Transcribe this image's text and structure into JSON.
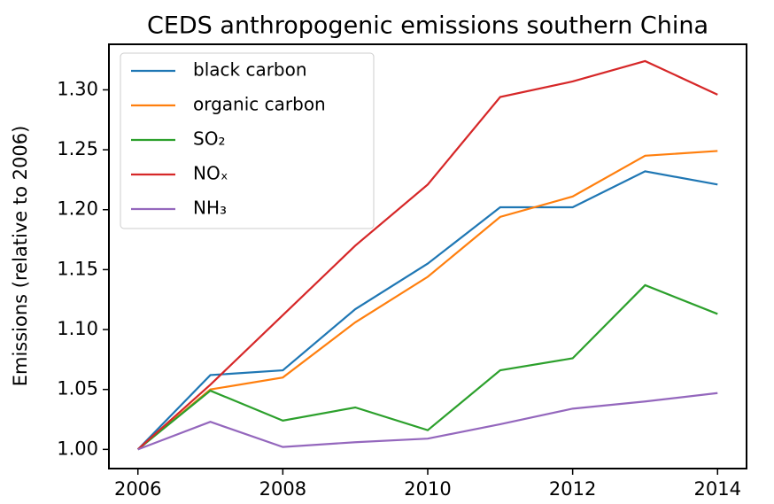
{
  "chart_data": {
    "type": "line",
    "title": "CEDS anthropogenic emissions southern China",
    "y_label": "Emissions (relative to 2006)",
    "x": [
      2006,
      2007,
      2008,
      2009,
      2010,
      2011,
      2012,
      2013,
      2014
    ],
    "series": [
      {
        "name": "black carbon",
        "color": "#1f77b4",
        "values": [
          1.0,
          1.062,
          1.066,
          1.117,
          1.155,
          1.202,
          1.202,
          1.232,
          1.221
        ]
      },
      {
        "name": "organic carbon",
        "color": "#ff7f0e",
        "values": [
          1.0,
          1.05,
          1.06,
          1.106,
          1.144,
          1.194,
          1.211,
          1.245,
          1.249
        ]
      },
      {
        "name": "SO₂",
        "color": "#2ca02c",
        "values": [
          1.0,
          1.049,
          1.024,
          1.035,
          1.016,
          1.066,
          1.076,
          1.137,
          1.113
        ]
      },
      {
        "name": "NOₓ",
        "color": "#d62728",
        "values": [
          1.0,
          1.054,
          1.112,
          1.17,
          1.221,
          1.294,
          1.307,
          1.324,
          1.296
        ]
      },
      {
        "name": "NH₃",
        "color": "#9467bd",
        "values": [
          1.0,
          1.023,
          1.002,
          1.006,
          1.009,
          1.021,
          1.034,
          1.04,
          1.047
        ]
      }
    ],
    "xlim": [
      2005.6,
      2014.4
    ],
    "xticks": [
      2006,
      2008,
      2010,
      2012,
      2014
    ],
    "ylim": [
      0.984,
      1.338
    ],
    "yticks": [
      {
        "value": 1.0,
        "label": "1.00"
      },
      {
        "value": 1.05,
        "label": "1.05"
      },
      {
        "value": 1.1,
        "label": "1.10"
      },
      {
        "value": 1.15,
        "label": "1.15"
      },
      {
        "value": 1.2,
        "label": "1.20"
      },
      {
        "value": 1.25,
        "label": "1.25"
      },
      {
        "value": 1.3,
        "label": "1.30"
      }
    ],
    "grid": false,
    "legend": "upper left"
  }
}
